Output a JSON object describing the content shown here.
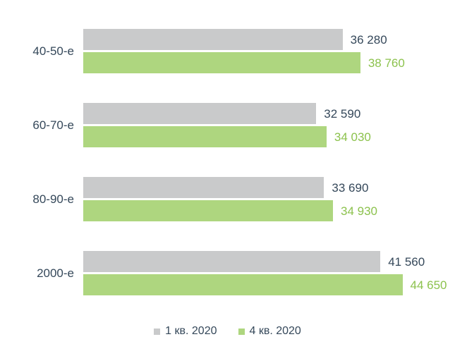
{
  "chart_data": {
    "type": "bar",
    "orientation": "horizontal",
    "title": "",
    "xlabel": "",
    "ylabel": "",
    "grid": false,
    "legend_position": "bottom",
    "categories": [
      "40-50-е",
      "60-70-е",
      "80-90-е",
      "2000-е"
    ],
    "series": [
      {
        "name": "1 кв. 2020",
        "color": "#c9cacb",
        "label_color": "#35485a",
        "values": [
          36280,
          32590,
          33690,
          41560
        ],
        "value_labels": [
          "36 280",
          "32 590",
          "33 690",
          "41 560"
        ]
      },
      {
        "name": "4 кв. 2020",
        "color": "#aed67f",
        "label_color": "#8cc24d",
        "values": [
          38760,
          34030,
          34930,
          44650
        ],
        "value_labels": [
          "38 760",
          "34 030",
          "34 930",
          "44 650"
        ]
      }
    ],
    "xlim": [
      0,
      52000
    ]
  },
  "colors": {
    "background": "#ffffff",
    "text_dark": "#35485a"
  }
}
